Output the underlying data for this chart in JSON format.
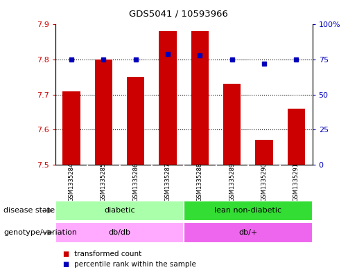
{
  "title": "GDS5041 / 10593966",
  "samples": [
    "GSM1335284",
    "GSM1335285",
    "GSM1335286",
    "GSM1335287",
    "GSM1335288",
    "GSM1335289",
    "GSM1335290",
    "GSM1335291"
  ],
  "transformed_count": [
    7.71,
    7.8,
    7.75,
    7.88,
    7.88,
    7.73,
    7.57,
    7.66
  ],
  "percentile_rank": [
    75,
    75,
    75,
    79,
    78,
    75,
    72,
    75
  ],
  "ylim_left": [
    7.5,
    7.9
  ],
  "ylim_right": [
    0,
    100
  ],
  "yticks_left": [
    7.5,
    7.6,
    7.7,
    7.8,
    7.9
  ],
  "yticks_right": [
    0,
    25,
    50,
    75,
    100
  ],
  "bar_color": "#cc0000",
  "dot_color": "#0000bb",
  "disease_state": [
    {
      "label": "diabetic",
      "start": 0,
      "end": 4,
      "color": "#aaffaa"
    },
    {
      "label": "lean non-diabetic",
      "start": 4,
      "end": 8,
      "color": "#33dd33"
    }
  ],
  "genotype": [
    {
      "label": "db/db",
      "start": 0,
      "end": 4,
      "color": "#ffaaff"
    },
    {
      "label": "db/+",
      "start": 4,
      "end": 8,
      "color": "#ee66ee"
    }
  ],
  "legend_items": [
    {
      "label": "transformed count",
      "color": "#cc0000"
    },
    {
      "label": "percentile rank within the sample",
      "color": "#0000bb"
    }
  ],
  "row_labels": [
    "disease state",
    "genotype/variation"
  ],
  "background_color": "#ffffff",
  "grid_color": "#000000",
  "tick_color_left": "#cc0000",
  "tick_color_right": "#0000bb",
  "sample_box_color": "#cccccc",
  "sample_box_edge": "#999999"
}
